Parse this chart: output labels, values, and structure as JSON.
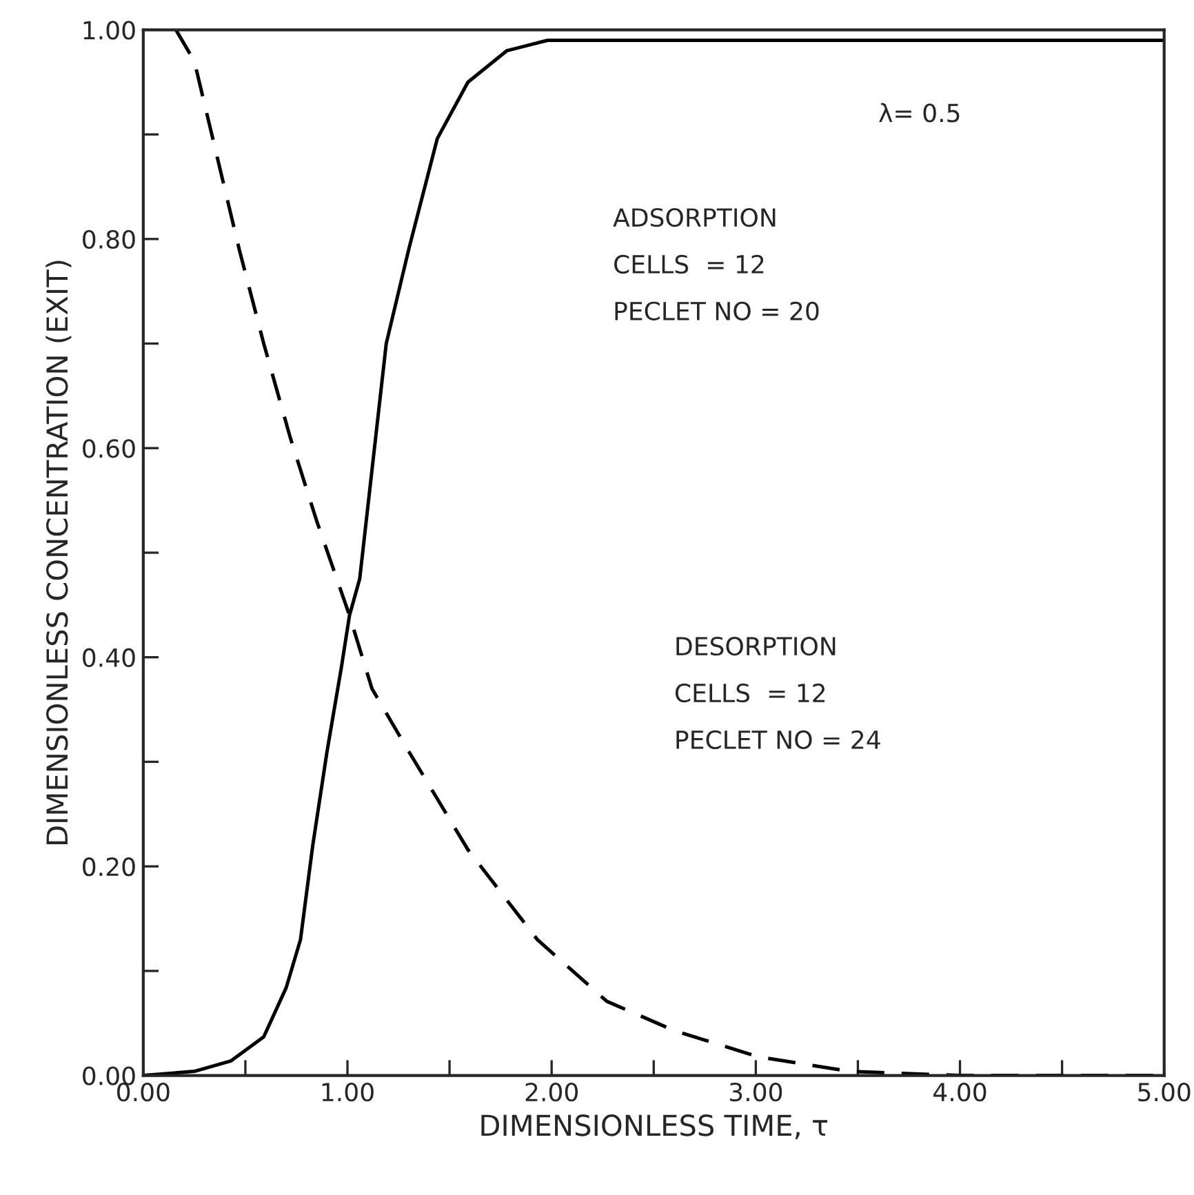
{
  "chart_data": {
    "type": "line",
    "xlabel": "DIMENSIONLESS TIME, τ",
    "ylabel": "DIMENSIONLESS CONCENTRATION (EXIT)",
    "annotations": [
      "λ= 0.5",
      "ADSORPTION\nCELLS  = 12\nPECLET NO = 20",
      "DESORPTION\nCELLS  = 12\nPECLET NO = 24"
    ],
    "series": [
      {
        "color": "#000000",
        "line_style": "solid",
        "x": [
          0,
          0.25,
          0.43,
          0.59,
          0.7,
          0.77,
          0.83,
          0.9,
          0.97,
          1.01,
          1.06,
          1.19,
          1.3,
          1.44,
          1.59,
          1.78,
          1.98,
          3.0,
          4.0,
          5.0
        ],
        "values": [
          0,
          0.004,
          0.014,
          0.037,
          0.084,
          0.13,
          0.22,
          0.31,
          0.39,
          0.44,
          0.475,
          0.7,
          0.79,
          0.896,
          0.95,
          0.98,
          0.99,
          0.99,
          0.99,
          0.99
        ]
      },
      {
        "color": "#000000",
        "line_style": "dashed",
        "x": [
          0.16,
          0.25,
          0.36,
          0.47,
          0.59,
          0.72,
          0.85,
          1.01,
          1.12,
          1.3,
          1.59,
          1.93,
          2.27,
          2.6,
          3.01,
          3.46,
          4.0,
          5.0
        ],
        "values": [
          1.0,
          0.97,
          0.88,
          0.79,
          0.7,
          0.61,
          0.53,
          0.44,
          0.37,
          0.31,
          0.216,
          0.13,
          0.071,
          0.043,
          0.018,
          0.004,
          0,
          0
        ]
      }
    ],
    "xlim": [
      0,
      5
    ],
    "ylim": [
      0,
      1
    ],
    "xticks": [
      {
        "value": 0,
        "label": "0.00"
      },
      {
        "value": 0.5,
        "label": null
      },
      {
        "value": 1,
        "label": "1.00"
      },
      {
        "value": 1.5,
        "label": null
      },
      {
        "value": 2,
        "label": "2.00"
      },
      {
        "value": 2.5,
        "label": null
      },
      {
        "value": 3,
        "label": "3.00"
      },
      {
        "value": 3.5,
        "label": null
      },
      {
        "value": 4,
        "label": "4.00"
      },
      {
        "value": 4.5,
        "label": null
      },
      {
        "value": 5,
        "label": "5.00"
      }
    ],
    "yticks": [
      {
        "value": 0,
        "label": "0.00"
      },
      {
        "value": 0.1,
        "label": null
      },
      {
        "value": 0.2,
        "label": "0.20"
      },
      {
        "value": 0.3,
        "label": null
      },
      {
        "value": 0.4,
        "label": "0.40"
      },
      {
        "value": 0.5,
        "label": null
      },
      {
        "value": 0.6,
        "label": "0.60"
      },
      {
        "value": 0.7,
        "label": null
      },
      {
        "value": 0.8,
        "label": "0.80"
      },
      {
        "value": 0.9,
        "label": null
      },
      {
        "value": 1,
        "label": "1.00"
      }
    ],
    "grid": false,
    "legend": false
  }
}
